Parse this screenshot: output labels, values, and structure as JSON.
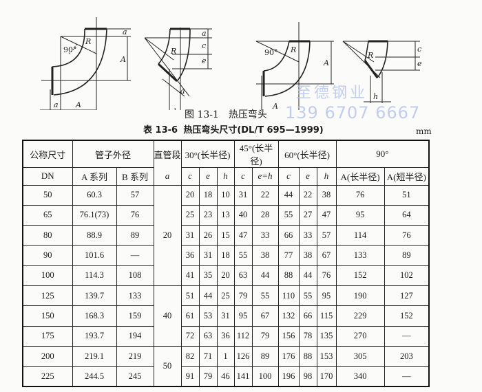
{
  "figure": {
    "labels": {
      "deg90": "90°",
      "R": "R",
      "a": "a",
      "A": "A",
      "c": "c",
      "e": "e",
      "h": "h"
    },
    "caption": "图 13-1　热压弯头"
  },
  "table_title": {
    "prefix": "表 13-6",
    "text": "热压弯头尺寸(DL/T 695—1999)"
  },
  "unit": "mm",
  "watermark": {
    "line1": "至德钢业",
    "line2": "139 6707 6667"
  },
  "table": {
    "header1": {
      "dn": "公称尺寸",
      "od": "管子外径",
      "straight": "直管段",
      "deg30": "30°(长半径)",
      "deg45": "45°(长半径)",
      "deg60": "60°(长半径)",
      "deg90": "90°"
    },
    "header2": {
      "dn": "DN",
      "a_series": "A 系列",
      "b_series": "B 系列",
      "a": "a",
      "c30": "c",
      "e30": "e",
      "h30": "h",
      "c45": "c",
      "eh45": "e=h",
      "c60": "c",
      "e60": "e",
      "h60": "h",
      "a_long": "A(长半径)",
      "a_short": "A(短半径)"
    },
    "straight_groups": [
      {
        "value": "20",
        "rows": 5
      },
      {
        "value": "40",
        "rows": 3
      },
      {
        "value": "50",
        "rows": 2
      }
    ],
    "rows": [
      [
        "50",
        "60.3",
        "57",
        "20",
        "18",
        "10",
        "31",
        "22",
        "44",
        "22",
        "38",
        "76",
        "51"
      ],
      [
        "65",
        "76.1(73)",
        "76",
        "25",
        "23",
        "13",
        "40",
        "28",
        "55",
        "27",
        "47",
        "95",
        "64"
      ],
      [
        "80",
        "88.9",
        "89",
        "31",
        "26",
        "15",
        "47",
        "33",
        "66",
        "33",
        "57",
        "114",
        "76"
      ],
      [
        "90",
        "101.6",
        "—",
        "36",
        "31",
        "18",
        "55",
        "38",
        "77",
        "38",
        "67",
        "133",
        "89"
      ],
      [
        "100",
        "114.3",
        "108",
        "41",
        "35",
        "20",
        "63",
        "44",
        "88",
        "44",
        "76",
        "152",
        "102"
      ],
      [
        "125",
        "139.7",
        "133",
        "51",
        "44",
        "25",
        "79",
        "55",
        "110",
        "55",
        "95",
        "190",
        "127"
      ],
      [
        "150",
        "168.3",
        "159",
        "61",
        "53",
        "31",
        "95",
        "67",
        "132",
        "66",
        "115",
        "229",
        "152"
      ],
      [
        "175",
        "193.7",
        "194",
        "72",
        "63",
        "36",
        "112",
        "79",
        "156",
        "78",
        "135",
        "270",
        "—"
      ],
      [
        "200",
        "219.1",
        "219",
        "82",
        "71",
        "1",
        "126",
        "89",
        "176",
        "88",
        "153",
        "305",
        "203"
      ],
      [
        "225",
        "244.5",
        "245",
        "91",
        "79",
        "46",
        "141",
        "100",
        "196",
        "98",
        "170",
        "340",
        "—"
      ]
    ]
  }
}
